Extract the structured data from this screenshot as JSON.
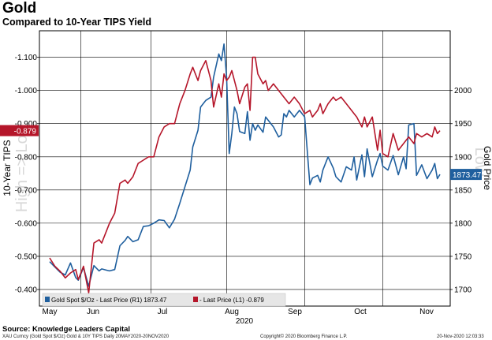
{
  "title": "Gold",
  "subtitle": "Compared to 10-Year TIPS Yield",
  "source": "Source: Knowledge Leaders Capital",
  "footer": {
    "series_info": "XAU Curncy (Gold Spot  $/Oz) Gold & 10Y TIPS  Daily 20MAY2020-20NOV2020",
    "copyright": "Copyright© 2020 Bloomberg Finance L.P.",
    "timestamp": "20-Nov-2020 12:03:33"
  },
  "chart_data": {
    "type": "line",
    "title": "Gold",
    "subtitle": "Compared to 10-Year TIPS Yield",
    "xlabel": "2020",
    "x_ticks": [
      "May",
      "Jun",
      "Jul",
      "Aug",
      "Sep",
      "Oct",
      "Nov"
    ],
    "left_axis": {
      "label": "10-Year TIPS",
      "watermark": "High => Low",
      "inverted": true,
      "range": [
        -0.35,
        -1.18
      ],
      "ticks": [
        "-1.100",
        "-1.000",
        "-0.900",
        "-0.800",
        "-0.700",
        "-0.600",
        "-0.500",
        "-0.400"
      ],
      "tick_values": [
        -1.1,
        -1.0,
        -0.9,
        -0.8,
        -0.7,
        -0.6,
        -0.5,
        -0.4
      ]
    },
    "right_axis": {
      "label": "Gold Price",
      "watermark": "Low",
      "range": [
        1675,
        2090
      ],
      "ticks": [
        "2000",
        "1950",
        "1900",
        "1850",
        "1800",
        "1750",
        "1700"
      ],
      "tick_values": [
        2000,
        1950,
        1900,
        1850,
        1800,
        1750,
        1700
      ]
    },
    "series": [
      {
        "name": "Gold Spot",
        "legend": "Gold Spot  $/Oz - Last Price (R1) 1873.47",
        "axis": "right",
        "color": "#1f5f9e",
        "last_label": "1873.47",
        "x": [
          0,
          2,
          4,
          6,
          8,
          10,
          11,
          13,
          15,
          17,
          19,
          20,
          22,
          23,
          25,
          27,
          29,
          30,
          32,
          34,
          36,
          38,
          40,
          42,
          44,
          46,
          48,
          50,
          52,
          54,
          55,
          57,
          58,
          60,
          62,
          63,
          65,
          66,
          67,
          68,
          69,
          70,
          71,
          72,
          73,
          75,
          76,
          77,
          78,
          79,
          80,
          82,
          83,
          84,
          86,
          88,
          89,
          90,
          91,
          92,
          94,
          96,
          98,
          100,
          101,
          103,
          104,
          105,
          107,
          109,
          110,
          112,
          114,
          116,
          117,
          118,
          120,
          121,
          122,
          124,
          126,
          127,
          128,
          130,
          132,
          134,
          136,
          137,
          138,
          140,
          141,
          143,
          145,
          147,
          148,
          149,
          150
        ],
        "values": [
          1742,
          1734,
          1726,
          1722,
          1740,
          1718,
          1714,
          1733,
          1705,
          1736,
          1728,
          1731,
          1729,
          1728,
          1730,
          1766,
          1774,
          1780,
          1772,
          1775,
          1795,
          1796,
          1800,
          1805,
          1804,
          1793,
          1806,
          1830,
          1855,
          1880,
          1915,
          1940,
          1975,
          1985,
          1990,
          2020,
          2055,
          2045,
          2070,
          2020,
          1905,
          1935,
          1975,
          1965,
          1938,
          1935,
          1968,
          1925,
          1950,
          1940,
          1948,
          1937,
          1960,
          1955,
          1945,
          1930,
          1933,
          1965,
          1960,
          1970,
          1960,
          1970,
          1960,
          1858,
          1868,
          1872,
          1862,
          1880,
          1900,
          1883,
          1870,
          1862,
          1885,
          1880,
          1900,
          1865,
          1903,
          1870,
          1912,
          1870,
          1895,
          1905,
          1886,
          1880,
          1902,
          1873,
          1900,
          1882,
          1948,
          1950,
          1872,
          1888,
          1867,
          1880,
          1890,
          1867,
          1873.47
        ]
      },
      {
        "name": "10-Year TIPS",
        "legend": "- Last Price (L1) -0.879",
        "axis": "left",
        "color": "#b5162a",
        "last_label": "-0.879",
        "x": [
          0,
          2,
          4,
          6,
          8,
          10,
          11,
          13,
          15,
          17,
          19,
          20,
          22,
          23,
          25,
          27,
          29,
          30,
          32,
          34,
          36,
          38,
          40,
          42,
          44,
          46,
          48,
          50,
          52,
          54,
          55,
          57,
          58,
          60,
          62,
          63,
          65,
          66,
          67,
          68,
          69,
          70,
          71,
          72,
          73,
          75,
          76,
          77,
          78,
          79,
          80,
          82,
          83,
          84,
          86,
          88,
          89,
          90,
          91,
          92,
          94,
          96,
          98,
          100,
          101,
          103,
          104,
          105,
          107,
          109,
          110,
          112,
          114,
          116,
          117,
          118,
          120,
          121,
          122,
          124,
          126,
          127,
          128,
          130,
          132,
          134,
          136,
          137,
          138,
          140,
          141,
          143,
          145,
          147,
          148,
          149,
          150
        ],
        "values": [
          -0.495,
          -0.47,
          -0.455,
          -0.435,
          -0.45,
          -0.46,
          -0.43,
          -0.47,
          -0.39,
          -0.54,
          -0.55,
          -0.54,
          -0.58,
          -0.6,
          -0.63,
          -0.72,
          -0.73,
          -0.72,
          -0.74,
          -0.78,
          -0.79,
          -0.8,
          -0.8,
          -0.86,
          -0.89,
          -0.9,
          -0.9,
          -0.96,
          -1.0,
          -1.05,
          -1.07,
          -1.03,
          -1.06,
          -1.09,
          -1.03,
          -0.95,
          -1.02,
          -0.98,
          -1.05,
          -1.03,
          -1.04,
          -1.06,
          -1.03,
          -1.0,
          -0.96,
          -1.01,
          -1.02,
          -0.94,
          -1.1,
          -1.1,
          -1.05,
          -1.02,
          -1.03,
          -1.0,
          -1.02,
          -1.0,
          -0.99,
          -0.98,
          -0.97,
          -0.96,
          -0.98,
          -0.96,
          -0.93,
          -0.94,
          -0.92,
          -0.94,
          -0.96,
          -0.93,
          -0.96,
          -0.98,
          -0.97,
          -0.98,
          -0.96,
          -0.94,
          -0.93,
          -0.92,
          -0.89,
          -0.92,
          -0.89,
          -0.92,
          -0.82,
          -0.88,
          -0.81,
          -0.8,
          -0.87,
          -0.82,
          -0.84,
          -0.85,
          -0.86,
          -0.84,
          -0.87,
          -0.86,
          -0.87,
          -0.86,
          -0.89,
          -0.87,
          -0.879
        ]
      }
    ]
  }
}
